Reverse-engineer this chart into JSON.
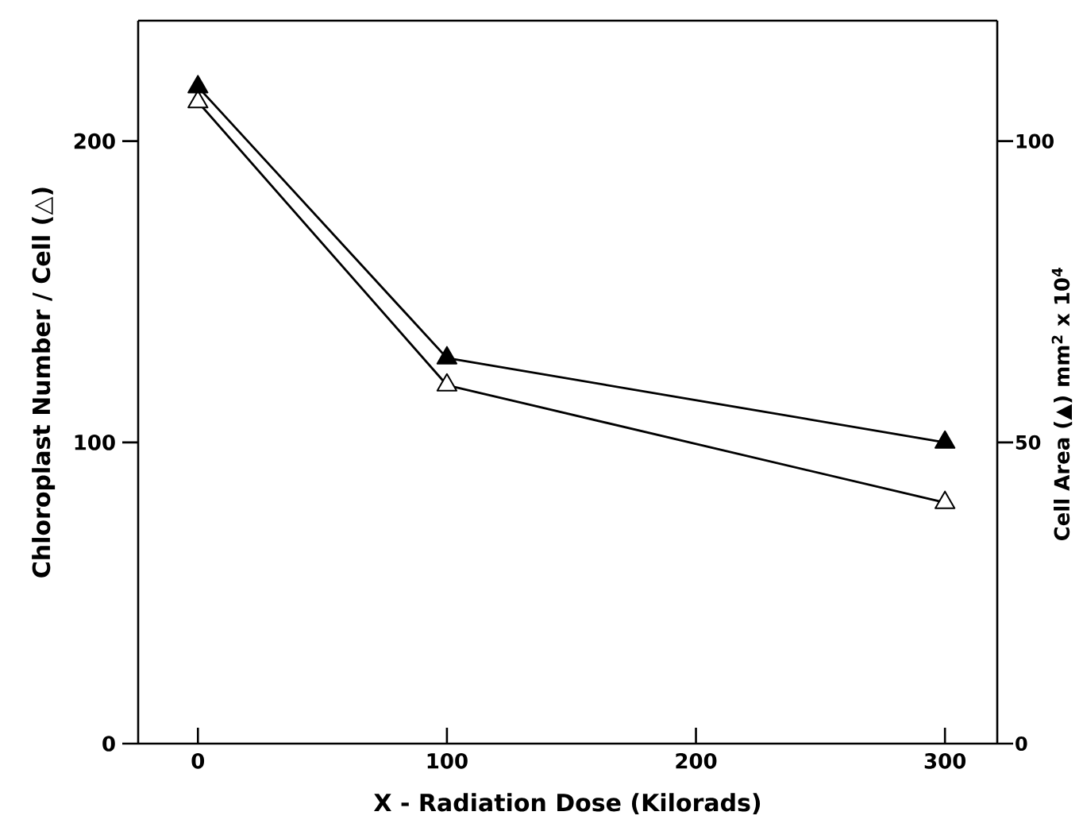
{
  "chart_data": {
    "type": "line",
    "xlabel": "X - Radiation Dose (Kilorads)",
    "ylabel": "Chloroplast Number / Cell (△)",
    "y2label": "Cell Area (▲) mm$^{2}$ x 10$^{4}$",
    "x": [
      0,
      100,
      300
    ],
    "series": [
      {
        "color": "#000000",
        "values": [
          213,
          119,
          80
        ]
      },
      {
        "color": "#000000",
        "values": [
          109,
          64,
          50
        ],
        "axis": "y2"
      }
    ],
    "xlim": [
      -24,
      321
    ],
    "xticks": [
      0,
      100,
      200,
      300
    ],
    "ylim": [
      0,
      240
    ],
    "yticks": [
      0,
      100,
      200
    ],
    "y2lim": [
      0,
      120
    ],
    "y2ticks": [
      0,
      50,
      100
    ],
    "grid": false,
    "marker": "triangle",
    "line_style": "solid"
  }
}
